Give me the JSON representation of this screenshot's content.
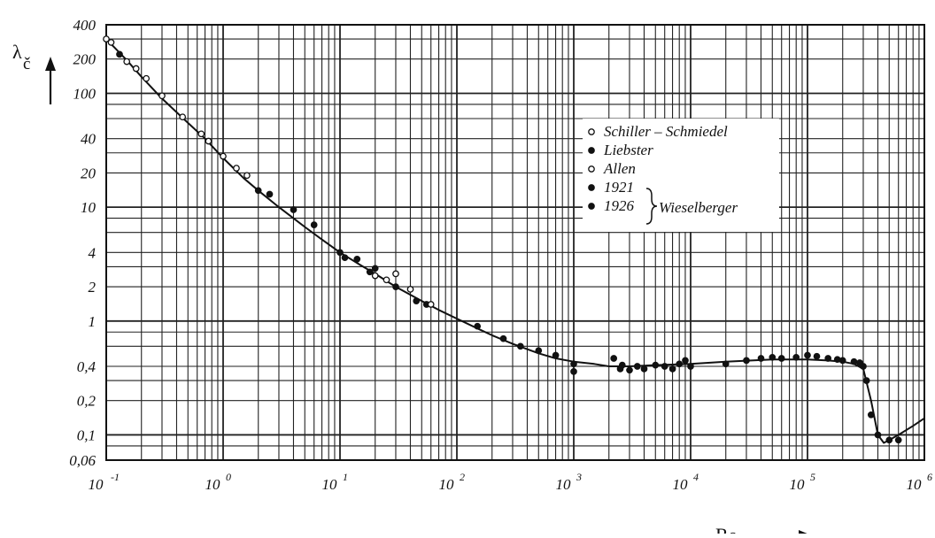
{
  "chart_data": {
    "type": "line",
    "scale": {
      "x": "log",
      "y": "log"
    },
    "xlim": [
      0.1,
      1000000
    ],
    "ylim": [
      0.06,
      400
    ],
    "grid": true,
    "legend_placement": "upper-right",
    "y_tick_labels": [
      {
        "v": 400,
        "t": "400"
      },
      {
        "v": 200,
        "t": "200"
      },
      {
        "v": 100,
        "t": "100"
      },
      {
        "v": 40,
        "t": "40"
      },
      {
        "v": 20,
        "t": "20"
      },
      {
        "v": 10,
        "t": "10"
      },
      {
        "v": 4,
        "t": "4"
      },
      {
        "v": 2,
        "t": "2"
      },
      {
        "v": 1,
        "t": "1"
      },
      {
        "v": 0.4,
        "t": "0,4"
      },
      {
        "v": 0.2,
        "t": "0,2"
      },
      {
        "v": 0.1,
        "t": "0,1"
      },
      {
        "v": 0.06,
        "t": "0,06"
      }
    ],
    "x_tick_labels": [
      {
        "v": 0.1,
        "base": "10",
        "exp": "-1"
      },
      {
        "v": 1,
        "base": "10",
        "exp": "0"
      },
      {
        "v": 10,
        "base": "10",
        "exp": "1"
      },
      {
        "v": 100,
        "base": "10",
        "exp": "2"
      },
      {
        "v": 1000,
        "base": "10",
        "exp": "3"
      },
      {
        "v": 10000,
        "base": "10",
        "exp": "4"
      },
      {
        "v": 100000,
        "base": "10",
        "exp": "5"
      },
      {
        "v": 1000000,
        "base": "10",
        "exp": "6"
      }
    ],
    "xlabel": {
      "main": "Re",
      "sub": "č"
    },
    "ylabel": {
      "main": "λ",
      "sub": "č"
    },
    "curve": {
      "x": [
        0.1,
        0.15,
        0.2,
        0.3,
        0.5,
        0.7,
        1,
        1.5,
        2,
        3,
        5,
        7,
        10,
        15,
        20,
        30,
        50,
        70,
        100,
        150,
        200,
        300,
        500,
        700,
        1000,
        1500,
        2000,
        3000,
        5000,
        10000,
        20000,
        50000,
        100000,
        150000,
        200000,
        250000,
        300000,
        350000,
        400000,
        450000,
        500000,
        600000,
        800000,
        1000000
      ],
      "y": [
        300,
        195,
        140,
        90,
        55,
        40,
        27,
        18,
        14,
        10,
        6.7,
        5.2,
        4,
        3.1,
        2.6,
        2,
        1.5,
        1.25,
        1.05,
        0.86,
        0.75,
        0.63,
        0.52,
        0.47,
        0.44,
        0.42,
        0.4,
        0.4,
        0.41,
        0.42,
        0.44,
        0.46,
        0.46,
        0.45,
        0.44,
        0.42,
        0.38,
        0.2,
        0.1,
        0.085,
        0.09,
        0.1,
        0.12,
        0.14
      ]
    },
    "series": [
      {
        "name": "Schiller – Schmiedel",
        "marker": "open",
        "points": [
          [
            0.1,
            300
          ],
          [
            0.11,
            280
          ],
          [
            0.15,
            190
          ],
          [
            0.18,
            165
          ],
          [
            0.22,
            135
          ],
          [
            0.3,
            95
          ],
          [
            0.45,
            62
          ],
          [
            0.65,
            44
          ],
          [
            0.75,
            38
          ],
          [
            1.0,
            28
          ],
          [
            1.3,
            22
          ],
          [
            1.6,
            19
          ]
        ]
      },
      {
        "name": "Liebster",
        "marker": "filled",
        "points": [
          [
            0.13,
            220
          ],
          [
            2,
            14
          ],
          [
            2.5,
            13
          ],
          [
            4,
            9.5
          ],
          [
            6,
            7
          ],
          [
            10,
            4
          ],
          [
            11,
            3.6
          ],
          [
            14,
            3.5
          ],
          [
            18,
            2.7
          ],
          [
            20,
            2.9
          ],
          [
            30,
            2
          ],
          [
            45,
            1.5
          ],
          [
            55,
            1.4
          ]
        ]
      },
      {
        "name": "Allen",
        "marker": "open",
        "points": [
          [
            20,
            2.5
          ],
          [
            25,
            2.3
          ],
          [
            30,
            2.6
          ],
          [
            40,
            1.9
          ],
          [
            60,
            1.4
          ]
        ]
      },
      {
        "name": "1921",
        "marker": "filled",
        "points": [
          [
            150,
            0.9
          ],
          [
            250,
            0.7
          ],
          [
            350,
            0.6
          ],
          [
            500,
            0.55
          ],
          [
            700,
            0.5
          ],
          [
            1000,
            0.42
          ],
          [
            1000,
            0.36
          ],
          [
            2200,
            0.47
          ],
          [
            2500,
            0.38
          ],
          [
            2600,
            0.41
          ],
          [
            3000,
            0.37
          ],
          [
            3500,
            0.4
          ],
          [
            4000,
            0.38
          ],
          [
            5000,
            0.41
          ],
          [
            6000,
            0.4
          ],
          [
            7000,
            0.38
          ],
          [
            8000,
            0.42
          ],
          [
            9000,
            0.45
          ],
          [
            10000,
            0.4
          ]
        ]
      },
      {
        "name": "1926",
        "marker": "filled",
        "points": [
          [
            20000,
            0.42
          ],
          [
            30000,
            0.45
          ],
          [
            40000,
            0.47
          ],
          [
            50000,
            0.48
          ],
          [
            60000,
            0.47
          ],
          [
            80000,
            0.48
          ],
          [
            100000,
            0.5
          ],
          [
            120000,
            0.49
          ],
          [
            150000,
            0.47
          ],
          [
            180000,
            0.46
          ],
          [
            200000,
            0.45
          ],
          [
            250000,
            0.44
          ],
          [
            280000,
            0.43
          ],
          [
            300000,
            0.4
          ],
          [
            320000,
            0.3
          ],
          [
            350000,
            0.15
          ],
          [
            400000,
            0.1
          ],
          [
            500000,
            0.09
          ],
          [
            600000,
            0.09
          ]
        ]
      }
    ],
    "legend": {
      "entries": [
        {
          "label": "Schiller – Schmiedel",
          "marker": "open"
        },
        {
          "label": "Liebster",
          "marker": "filled"
        },
        {
          "label": "Allen",
          "marker": "open"
        },
        {
          "label": "1921",
          "marker": "filled"
        },
        {
          "label": "1926",
          "marker": "filled"
        }
      ],
      "group_label": "Wieselberger"
    }
  }
}
